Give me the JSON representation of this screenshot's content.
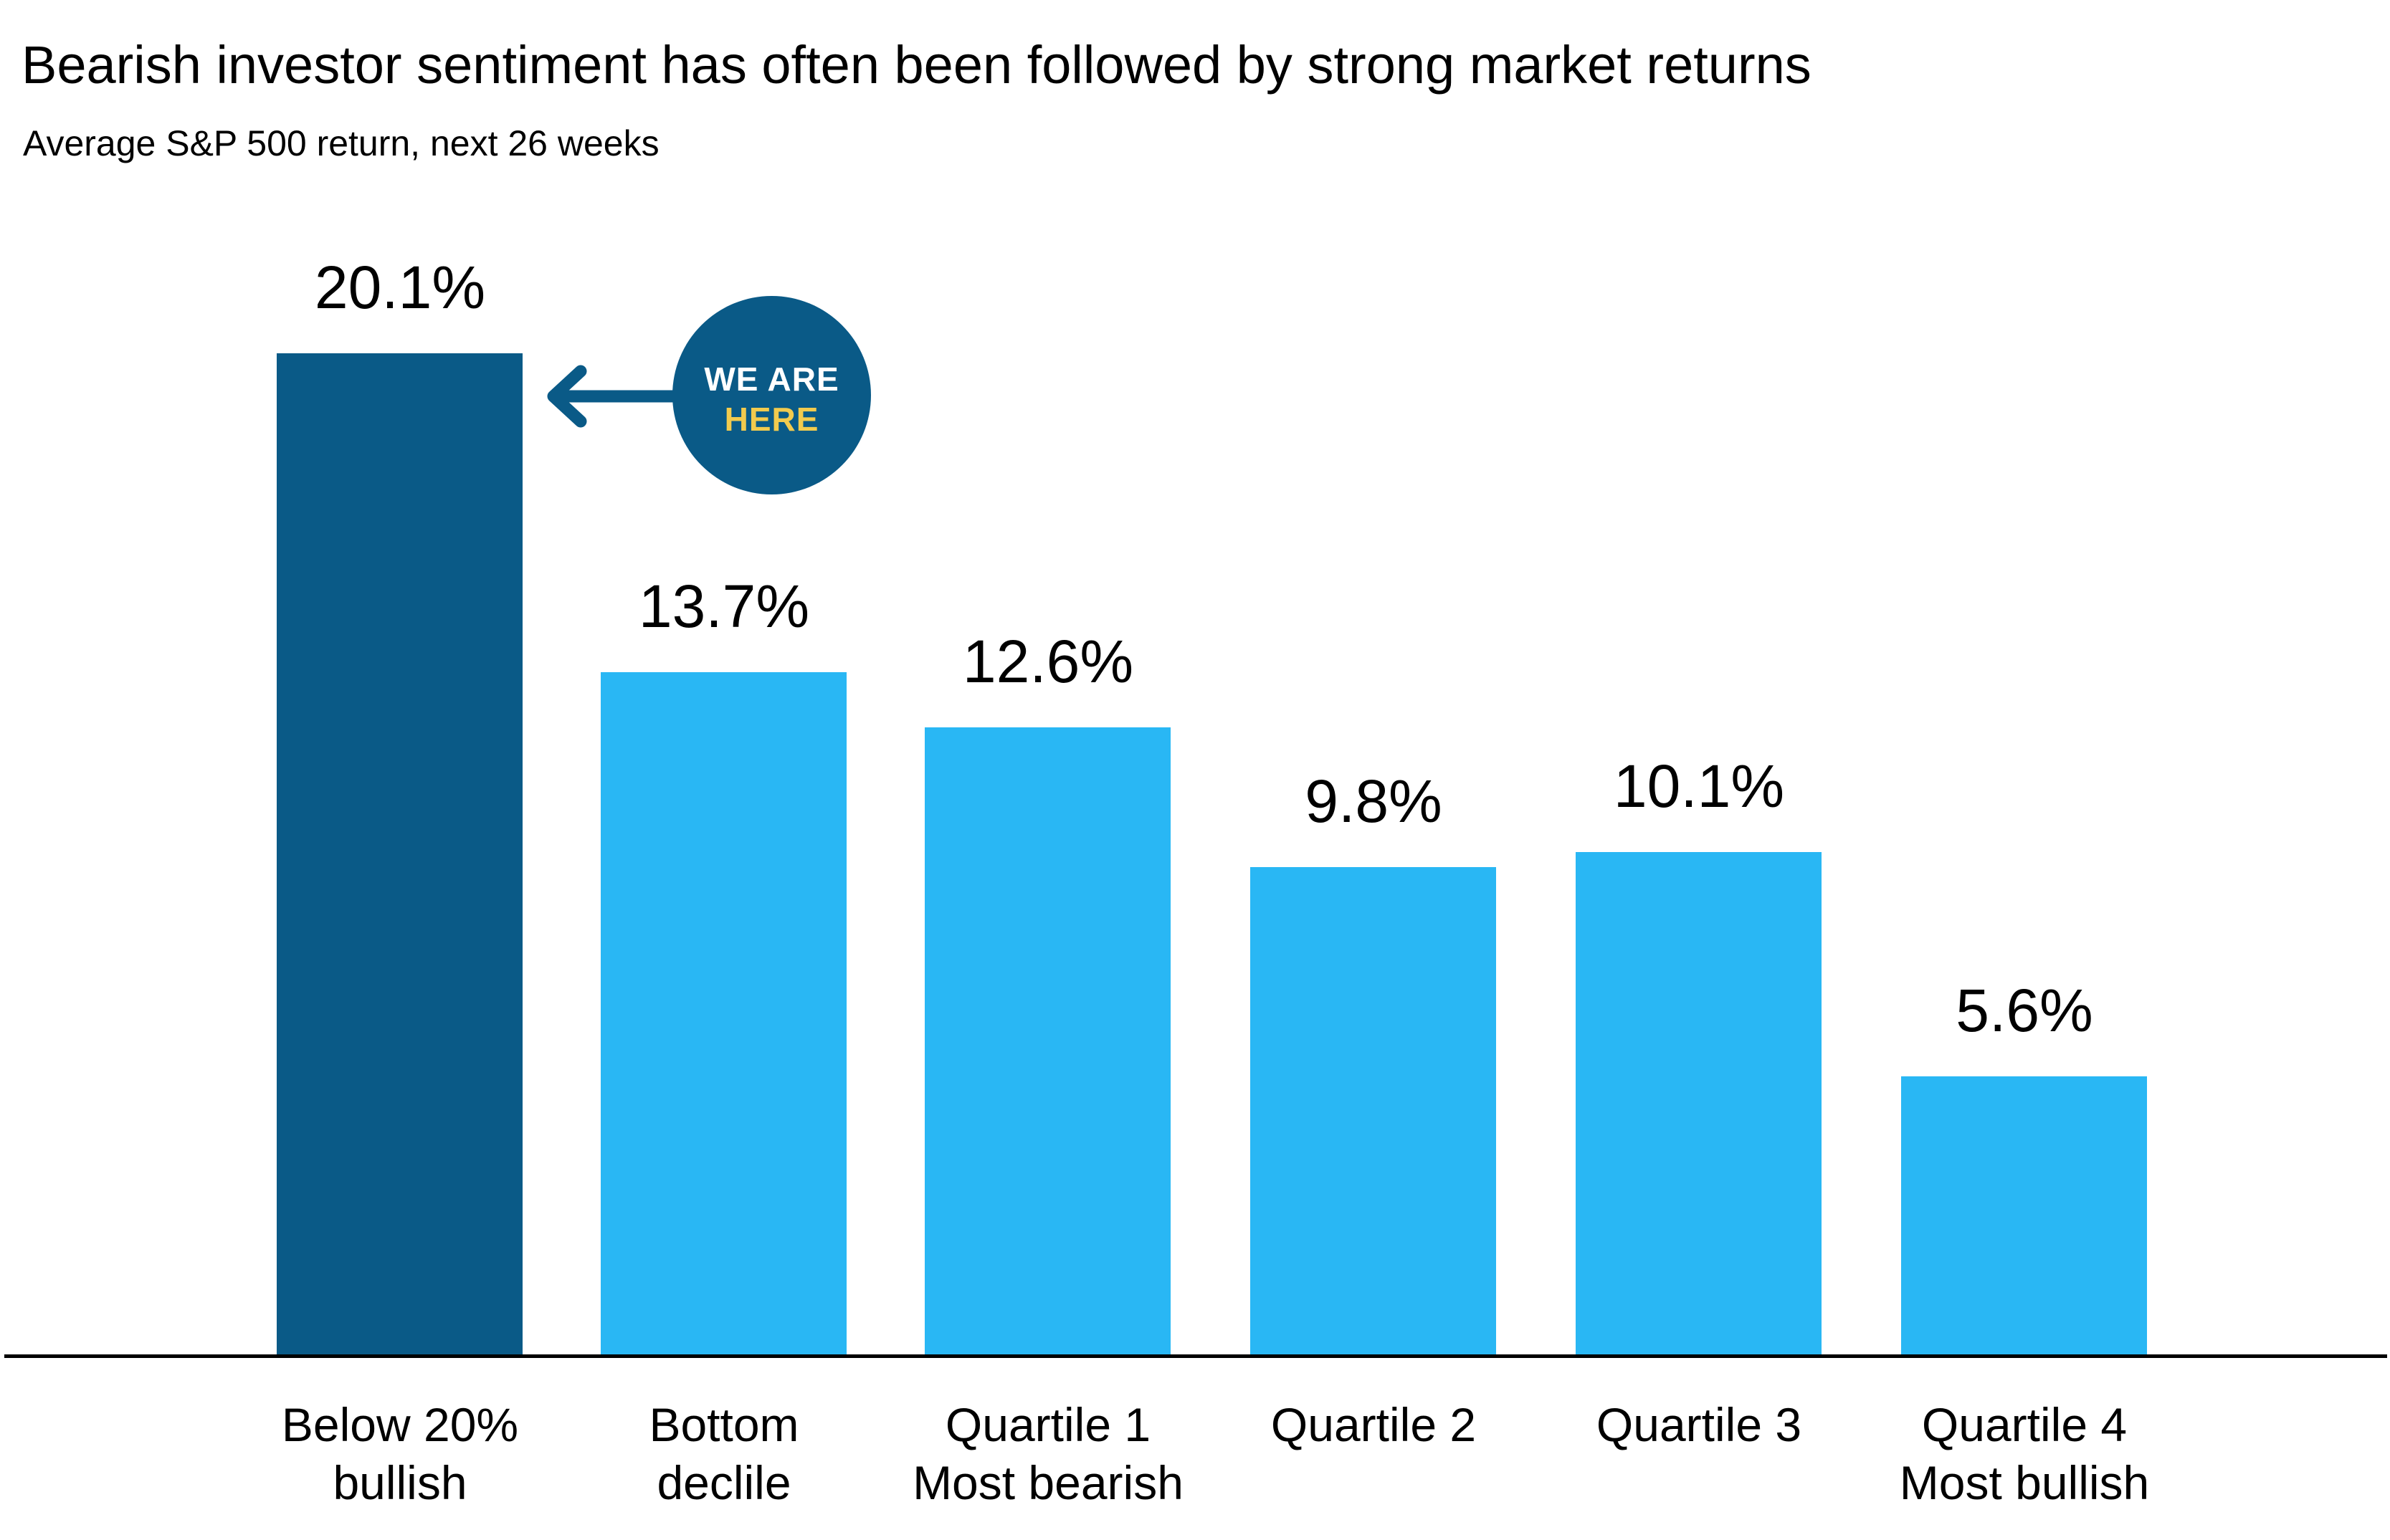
{
  "colors": {
    "background": "#FFFFFF",
    "highlight_bar": "#0A5A87",
    "default_bar": "#29B7F4",
    "badge_background": "#0A5A87",
    "badge_line1_text": "#FFFFFF",
    "badge_line2_text": "#F2CB4E",
    "arrow": "#0A5A87",
    "axis_line": "#000000",
    "text": "#000000"
  },
  "annotation_badge": {
    "line1": "WE ARE",
    "line2": "HERE"
  },
  "chart_data": {
    "type": "bar",
    "title": "Bearish investor sentiment has often been followed by strong market returns",
    "subtitle": "Average S&P 500 return, next 26 weeks",
    "categories": [
      "Below 20%\nbullish",
      "Bottom\ndeclile",
      "Quartile 1\nMost bearish",
      "Quartile 2",
      "Quartile 3",
      "Quartile 4\nMost bullish"
    ],
    "values": [
      20.1,
      13.7,
      12.6,
      9.8,
      10.1,
      5.6
    ],
    "value_labels": [
      "20.1%",
      "13.7%",
      "12.6%",
      "9.8%",
      "10.1%",
      "5.6%"
    ],
    "highlighted_index": 0,
    "xlabel": "",
    "ylabel": "",
    "ylim": [
      0,
      22
    ],
    "grid": false,
    "legend": false,
    "y_axis_visible": false,
    "annotation": {
      "text": "WE ARE HERE",
      "points_to": "Below 20% bullish"
    }
  }
}
